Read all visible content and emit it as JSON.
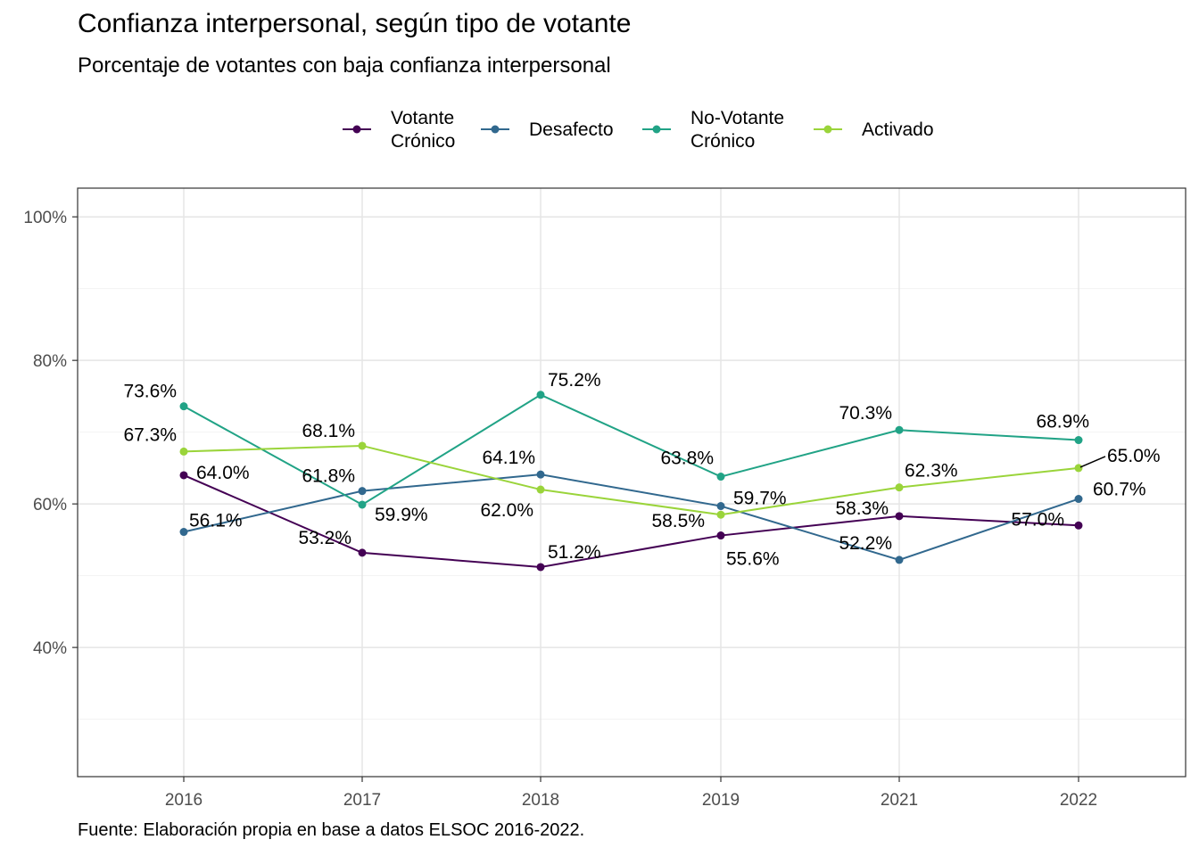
{
  "chart_data": {
    "type": "line",
    "title": "Confianza interpersonal, según tipo de votante",
    "subtitle": "Porcentaje de votantes con baja confianza interpersonal",
    "caption": "Fuente: Elaboración propia en base a datos ELSOC 2016-2022.",
    "xlabel": "",
    "ylabel": "",
    "categories": [
      "2016",
      "2017",
      "2018",
      "2019",
      "2021",
      "2022"
    ],
    "ylim": [
      22,
      104
    ],
    "yticks": [
      40,
      60,
      80,
      100
    ],
    "ytick_labels": [
      "40%",
      "60%",
      "80%",
      "100%"
    ],
    "grid": true,
    "legend_position": "top",
    "series": [
      {
        "name": "Votante Crónico",
        "legend_lines": [
          "Votante",
          "Crónico"
        ],
        "color": "#440154",
        "values": [
          64.0,
          53.2,
          51.2,
          55.6,
          58.3,
          57.0
        ],
        "labels": [
          "64.0%",
          "53.2%",
          "51.2%",
          "55.6%",
          "58.3%",
          "57.0%"
        ]
      },
      {
        "name": "Desafecto",
        "legend_lines": [
          "Desafecto"
        ],
        "color": "#31688e",
        "values": [
          56.1,
          61.8,
          64.1,
          59.7,
          52.2,
          60.7
        ],
        "labels": [
          "56.1%",
          "61.8%",
          "64.1%",
          "59.7%",
          "52.2%",
          "60.7%"
        ]
      },
      {
        "name": "No-Votante Crónico",
        "legend_lines": [
          "No-Votante",
          "Crónico"
        ],
        "color": "#21a386",
        "values": [
          73.6,
          59.9,
          75.2,
          63.8,
          70.3,
          68.9
        ],
        "labels": [
          "73.6%",
          "59.9%",
          "75.2%",
          "63.8%",
          "70.3%",
          "68.9%"
        ]
      },
      {
        "name": "Activado",
        "legend_lines": [
          "Activado"
        ],
        "color": "#9ad43a",
        "values": [
          67.3,
          68.1,
          62.0,
          58.5,
          62.3,
          65.0
        ],
        "labels": [
          "67.3%",
          "68.1%",
          "62.0%",
          "58.5%",
          "62.3%",
          "65.0%"
        ]
      }
    ]
  }
}
